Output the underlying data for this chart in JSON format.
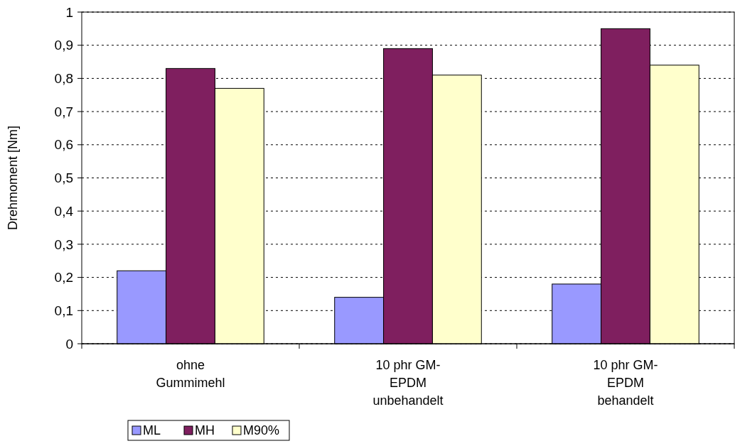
{
  "chart_data": {
    "type": "bar",
    "ylabel": "Drehmoment [Nm]",
    "categories": [
      "ohne Gummimehl",
      "10 phr GM-EPDM unbehandelt",
      "10 phr GM-EPDM behandelt"
    ],
    "series": [
      {
        "name": "ML",
        "color": "#9999ff",
        "values": [
          0.22,
          0.14,
          0.18
        ]
      },
      {
        "name": "MH",
        "color": "#7f1f5f",
        "values": [
          0.83,
          0.89,
          0.95
        ]
      },
      {
        "name": "M90%",
        "color": "#ffffcc",
        "values": [
          0.77,
          0.81,
          0.84
        ]
      }
    ],
    "ylim": [
      0,
      1
    ],
    "yticks": [
      {
        "value": 0,
        "label": "0"
      },
      {
        "value": 0.1,
        "label": "0,1"
      },
      {
        "value": 0.2,
        "label": "0,2"
      },
      {
        "value": 0.3,
        "label": "0,3"
      },
      {
        "value": 0.4,
        "label": "0,4"
      },
      {
        "value": 0.5,
        "label": "0,5"
      },
      {
        "value": 0.6,
        "label": "0,6"
      },
      {
        "value": 0.7,
        "label": "0,7"
      },
      {
        "value": 0.8,
        "label": "0,8"
      },
      {
        "value": 0.9,
        "label": "0,9"
      },
      {
        "value": 1,
        "label": "1"
      }
    ],
    "grid": "y",
    "legend": "bottom"
  }
}
